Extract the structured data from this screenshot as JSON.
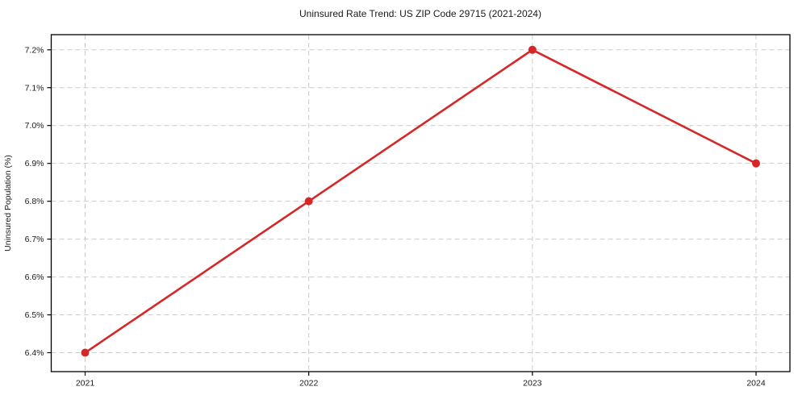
{
  "chart_data": {
    "type": "line",
    "title": "Uninsured Rate Trend: US ZIP Code 29715 (2021-2024)",
    "xlabel": "",
    "ylabel": "Uninsured Population (%)",
    "categories": [
      "2021",
      "2022",
      "2023",
      "2024"
    ],
    "values": [
      6.4,
      6.8,
      7.2,
      6.9
    ],
    "y_ticks": [
      6.4,
      6.5,
      6.6,
      6.7,
      6.8,
      6.9,
      7.0,
      7.1,
      7.2
    ],
    "y_tick_labels": [
      "6.4%",
      "6.5%",
      "6.6%",
      "6.7%",
      "6.8%",
      "6.9%",
      "7.0%",
      "7.1%",
      "7.2%"
    ],
    "ylim": [
      6.35,
      7.24
    ],
    "grid": "dashed",
    "legend_position": "none",
    "colors": {
      "line": "#d62728",
      "marker": "#d62728",
      "grid": "#cccccc",
      "spine": "#000000",
      "tick_text": "#1a1a1a",
      "background": "#ffffff"
    }
  }
}
